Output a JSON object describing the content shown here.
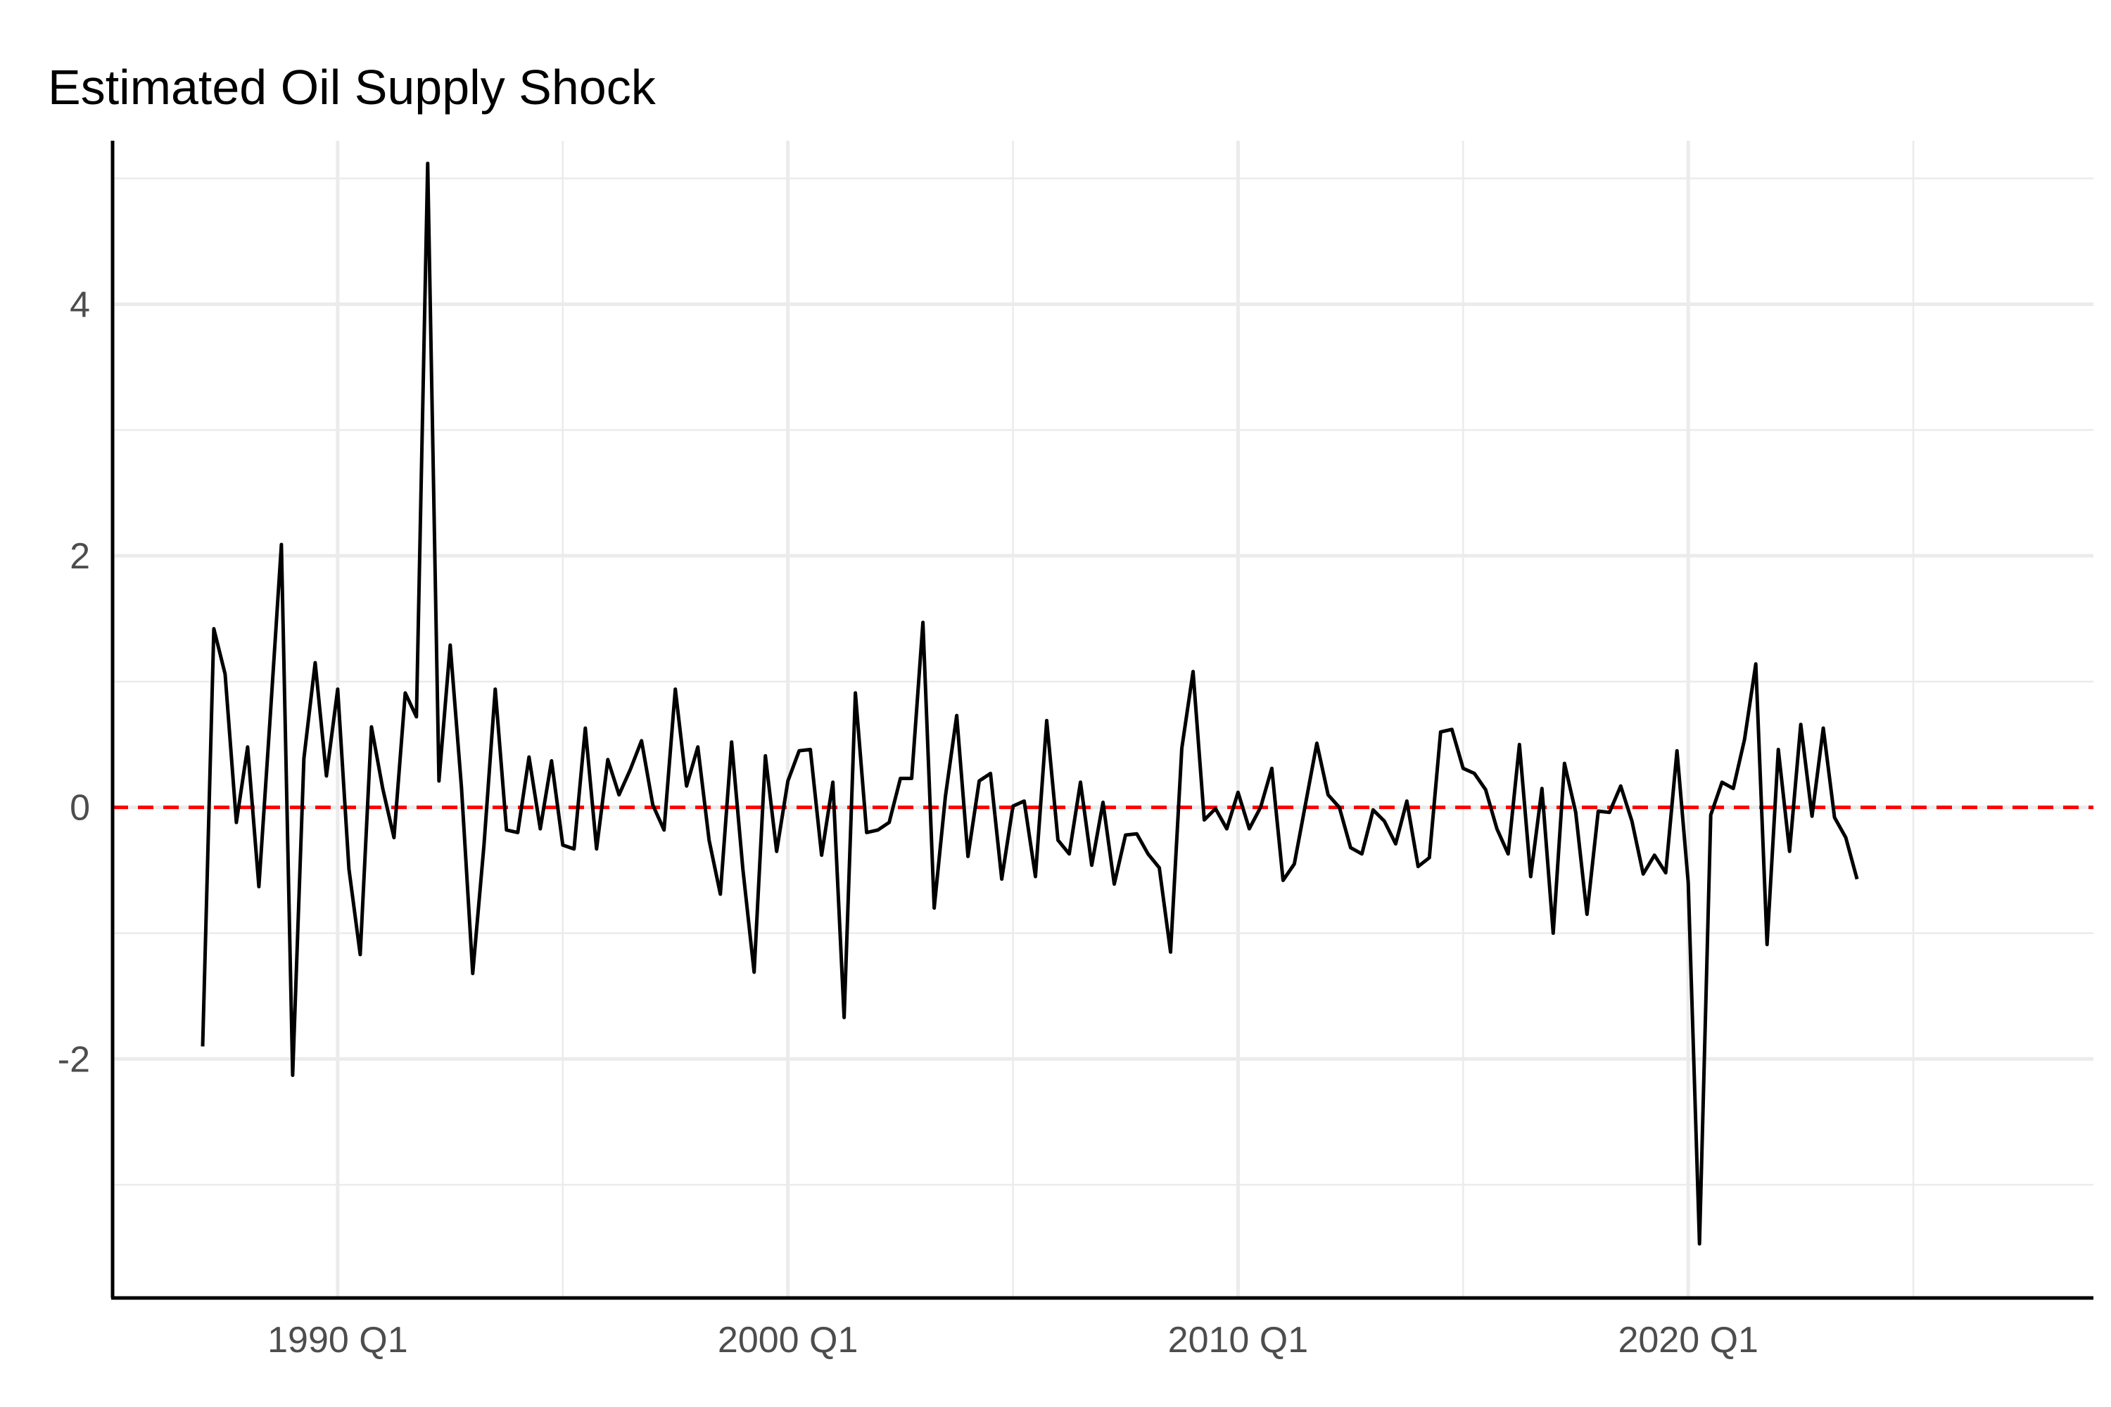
{
  "chart_data": {
    "type": "line",
    "title": "Estimated Oil Supply Shock",
    "xlabel": "",
    "ylabel": "",
    "x_start": "1987 Q1",
    "x_frequency": "quarterly",
    "xlim": [
      "1985 Q1",
      "2029 Q1"
    ],
    "ylim": [
      -3.9,
      5.3
    ],
    "yticks": [
      -2,
      0,
      2,
      4
    ],
    "xticks": [
      {
        "value": "1990 Q1",
        "label": "1990 Q1"
      },
      {
        "value": "2000 Q1",
        "label": "2000 Q1"
      },
      {
        "value": "2010 Q1",
        "label": "2010 Q1"
      },
      {
        "value": "2020 Q1",
        "label": "2020 Q1"
      }
    ],
    "grid": true,
    "reference_line": {
      "y": 0,
      "color": "#ff0000",
      "style": "dashed"
    },
    "series": [
      {
        "color": "#000000",
        "values": [
          -1.9,
          1.42,
          1.06,
          -0.12,
          0.48,
          -0.63,
          0.71,
          2.09,
          -2.13,
          0.39,
          1.15,
          0.25,
          0.94,
          -0.49,
          -1.17,
          0.64,
          0.15,
          -0.24,
          0.91,
          0.72,
          5.12,
          0.21,
          1.29,
          0.16,
          -1.32,
          -0.3,
          0.94,
          -0.18,
          -0.2,
          0.4,
          -0.17,
          0.37,
          -0.3,
          -0.33,
          0.63,
          -0.33,
          0.38,
          0.1,
          0.3,
          0.53,
          0.02,
          -0.18,
          0.94,
          0.17,
          0.48,
          -0.26,
          -0.69,
          0.52,
          -0.49,
          -1.31,
          0.41,
          -0.35,
          0.21,
          0.45,
          0.46,
          -0.38,
          0.2,
          -1.67,
          0.91,
          -0.2,
          -0.18,
          -0.12,
          0.23,
          0.23,
          1.47,
          -0.8,
          0.09,
          0.73,
          -0.39,
          0.21,
          0.27,
          -0.57,
          0.01,
          0.05,
          -0.55,
          0.69,
          -0.26,
          -0.37,
          0.2,
          -0.46,
          0.04,
          -0.61,
          -0.22,
          -0.21,
          -0.37,
          -0.48,
          -1.15,
          0.47,
          1.08,
          -0.1,
          -0.01,
          -0.17,
          0.12,
          -0.17,
          0.0,
          0.31,
          -0.58,
          -0.45,
          0.03,
          0.51,
          0.1,
          0.0,
          -0.32,
          -0.37,
          -0.02,
          -0.11,
          -0.29,
          0.05,
          -0.47,
          -0.4,
          0.6,
          0.62,
          0.31,
          0.27,
          0.14,
          -0.17,
          -0.37,
          0.5,
          -0.55,
          0.15,
          -1.0,
          0.35,
          -0.04,
          -0.85,
          -0.03,
          -0.04,
          0.17,
          -0.11,
          -0.53,
          -0.38,
          -0.52,
          0.45,
          -0.6,
          -3.47,
          -0.06,
          0.2,
          0.15,
          0.54,
          1.14,
          -1.09,
          0.46,
          -0.35,
          0.66,
          -0.07,
          0.63,
          -0.08,
          -0.24,
          -0.57
        ]
      }
    ]
  }
}
